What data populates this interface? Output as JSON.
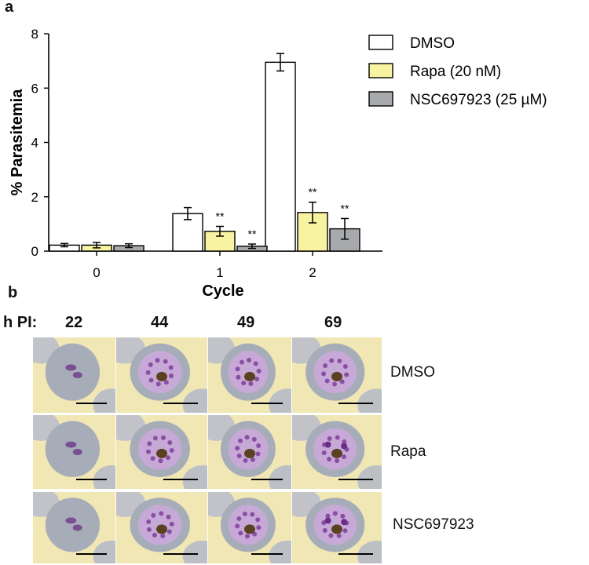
{
  "panel_a_label": "a",
  "panel_b_label": "b",
  "colors": {
    "dmso": "#ffffff",
    "rapa": "#f7f3a0",
    "nsc": "#a7a9ac",
    "axis": "#000000"
  },
  "chart_data": {
    "type": "bar",
    "title": "",
    "xlabel": "Cycle",
    "ylabel": "% Parasitemia",
    "categories": [
      "0",
      "1",
      "2"
    ],
    "ylim": [
      0,
      8
    ],
    "yticks": [
      0,
      2,
      4,
      6,
      8
    ],
    "legend_position": "top-right",
    "series": [
      {
        "name": "DMSO",
        "values": [
          0.22,
          1.38,
          6.95
        ],
        "errors": [
          0.06,
          0.22,
          0.32
        ],
        "sig": [
          "",
          "",
          ""
        ]
      },
      {
        "name": "Rapa (20 nM)",
        "values": [
          0.22,
          0.73,
          1.42
        ],
        "errors": [
          0.1,
          0.18,
          0.38
        ],
        "sig": [
          "",
          "**",
          "**"
        ]
      },
      {
        "name": "NSC697923 (25 µM)",
        "values": [
          0.2,
          0.18,
          0.82
        ],
        "errors": [
          0.07,
          0.08,
          0.38
        ],
        "sig": [
          "",
          "**",
          "**"
        ]
      }
    ]
  },
  "micrographs": {
    "hpi_label": "h PI:",
    "timepoints": [
      "22",
      "44",
      "49",
      "69"
    ],
    "rows": [
      "DMSO",
      "Rapa",
      "NSC697923"
    ]
  }
}
